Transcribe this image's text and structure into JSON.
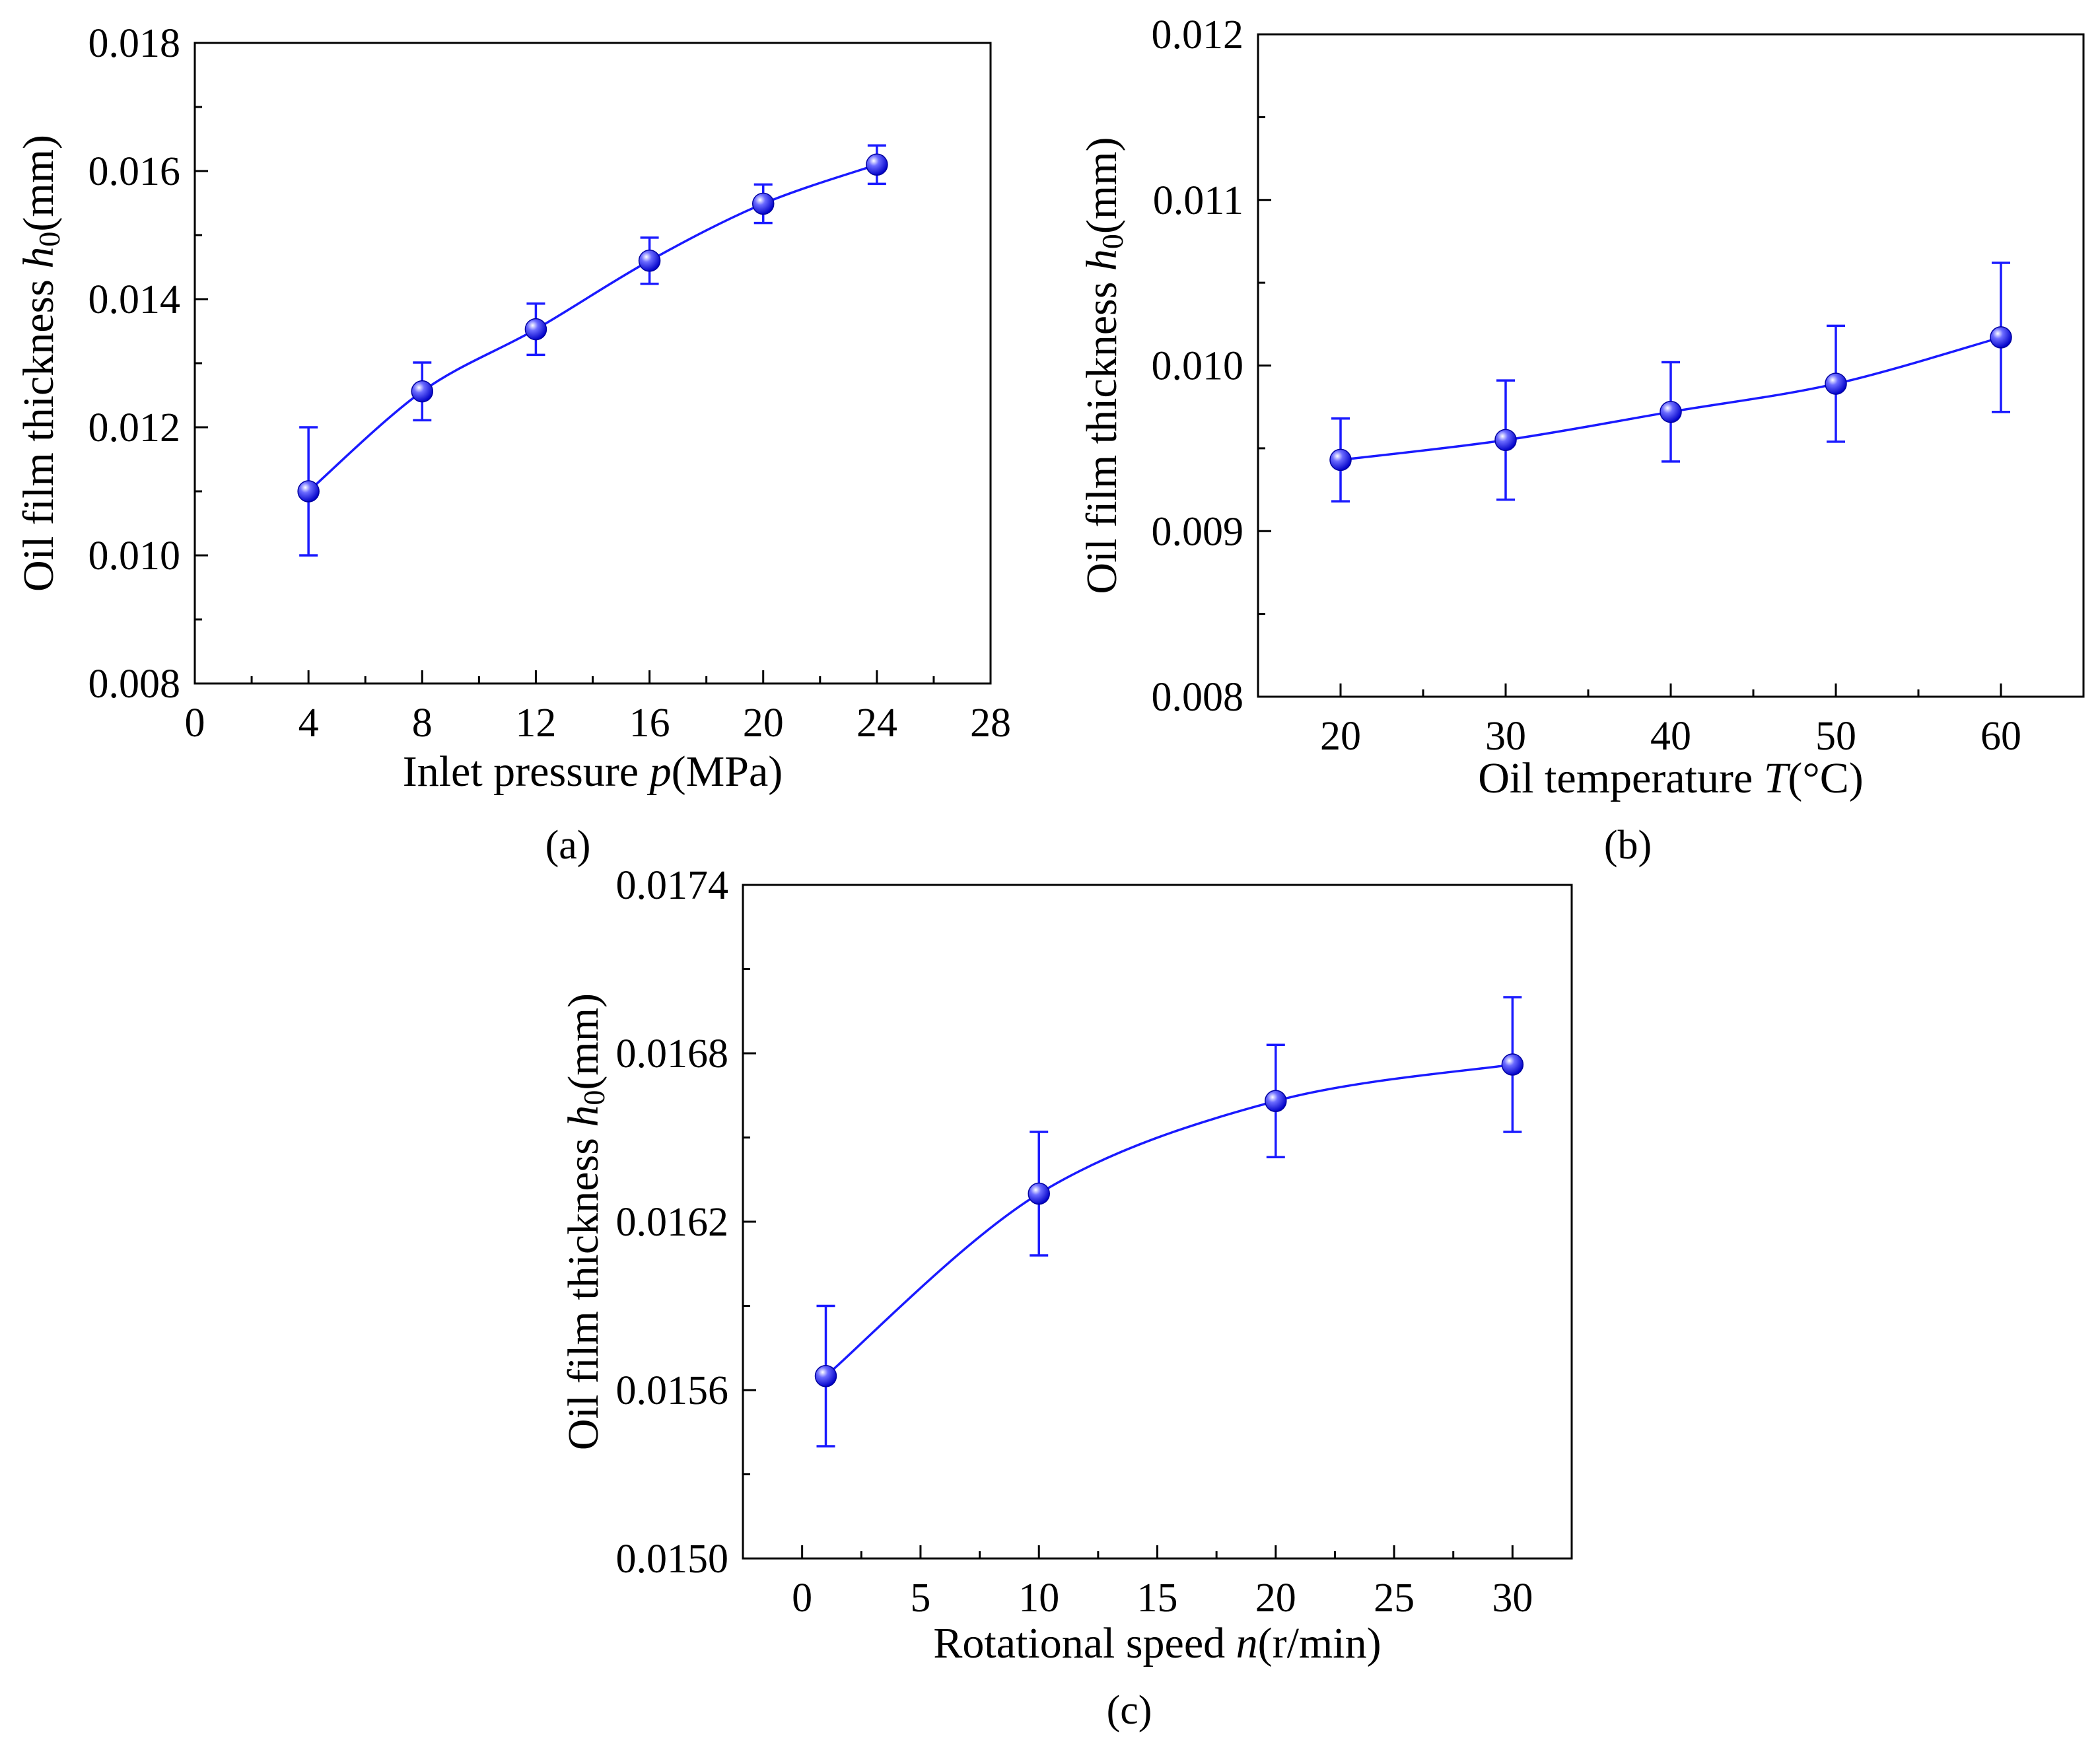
{
  "colors": {
    "series": "#1a1aff",
    "axis": "#000000",
    "background": "#ffffff"
  },
  "chart_data": [
    {
      "id": "a",
      "type": "line",
      "panel_label": "(a)",
      "xlabel": {
        "prefix": "Inlet pressure ",
        "var": "p",
        "suffix": "(MPa)"
      },
      "ylabel": {
        "prefix": "Oil film thickness ",
        "var": "h",
        "sub": "0",
        "suffix": "(mm)"
      },
      "xlim": [
        0,
        28
      ],
      "ylim": [
        0.008,
        0.018
      ],
      "xticks": [
        0,
        4,
        8,
        12,
        16,
        20,
        24,
        28
      ],
      "xtick_labels": [
        "0",
        "4",
        "8",
        "12",
        "16",
        "20",
        "24",
        "28"
      ],
      "yticks": [
        0.008,
        0.01,
        0.012,
        0.014,
        0.016,
        0.018
      ],
      "ytick_labels": [
        "0.008",
        "0.010",
        "0.012",
        "0.014",
        "0.016",
        "0.018"
      ],
      "series": [
        {
          "name": "h0",
          "x": [
            4,
            8,
            12,
            16,
            20,
            24
          ],
          "y": [
            0.011,
            0.01256,
            0.01353,
            0.0146,
            0.01549,
            0.0161
          ],
          "err": [
            0.001,
            0.00045,
            0.0004,
            0.00036,
            0.0003,
            0.0003
          ]
        }
      ]
    },
    {
      "id": "b",
      "type": "line",
      "panel_label": "(b)",
      "xlabel": {
        "prefix": "Oil temperature ",
        "var": "T",
        "suffix": "(°C)"
      },
      "ylabel": {
        "prefix": "Oil film thickness ",
        "var": "h",
        "sub": "0",
        "suffix": "(mm)"
      },
      "xlim": [
        15,
        65
      ],
      "ylim": [
        0.008,
        0.012
      ],
      "xticks": [
        20,
        30,
        40,
        50,
        60
      ],
      "xtick_labels": [
        "20",
        "30",
        "40",
        "50",
        "60"
      ],
      "yticks": [
        0.008,
        0.009,
        0.01,
        0.011,
        0.012
      ],
      "ytick_labels": [
        "0.008",
        "0.009",
        "0.010",
        "0.011",
        "0.012"
      ],
      "series": [
        {
          "name": "h0",
          "x": [
            20,
            30,
            40,
            50,
            60
          ],
          "y": [
            0.00943,
            0.00955,
            0.00972,
            0.00989,
            0.01017
          ],
          "err": [
            0.00025,
            0.00036,
            0.0003,
            0.00035,
            0.00045
          ]
        }
      ]
    },
    {
      "id": "c",
      "type": "line",
      "panel_label": "(c)",
      "xlabel": {
        "prefix": "Rotational speed ",
        "var": "n",
        "suffix": "(r/min)"
      },
      "ylabel": {
        "prefix": "Oil film thickness ",
        "var": "h",
        "sub": "0",
        "suffix": "(mm)"
      },
      "xlim": [
        -2.5,
        32.5
      ],
      "ylim": [
        0.015,
        0.0174
      ],
      "xticks": [
        0,
        5,
        10,
        15,
        20,
        25,
        30
      ],
      "xtick_labels": [
        "0",
        "5",
        "10",
        "15",
        "20",
        "25",
        "30"
      ],
      "yticks": [
        0.015,
        0.0156,
        0.0162,
        0.0168,
        0.0174
      ],
      "ytick_labels": [
        "0.0150",
        "0.0156",
        "0.0162",
        "0.0168",
        "0.0174"
      ],
      "series": [
        {
          "name": "h0",
          "x": [
            1,
            10,
            20,
            30
          ],
          "y": [
            0.01565,
            0.0163,
            0.01663,
            0.01676
          ],
          "err": [
            0.00025,
            0.00022,
            0.0002,
            0.00024
          ]
        }
      ]
    }
  ]
}
